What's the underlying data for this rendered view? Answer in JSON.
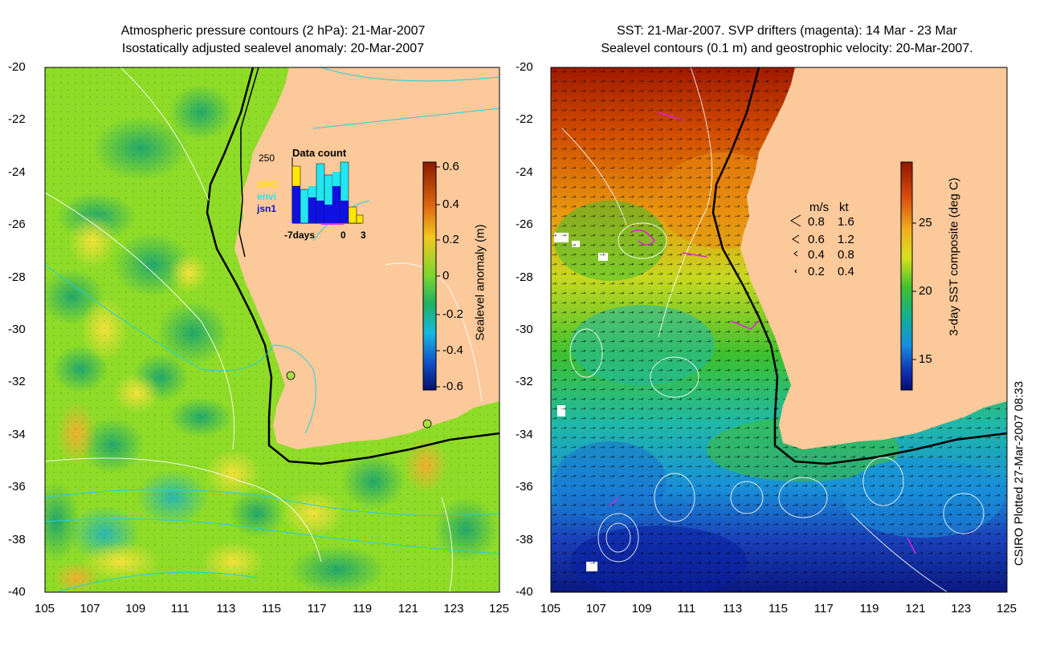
{
  "left_panel": {
    "title_line1": "Atmospheric pressure contours (2 hPa): 21-Mar-2007",
    "title_line2": "Isostatically adjusted sealevel anomaly: 20-Mar-2007",
    "colorbar": {
      "label": "Sealevel anomaly (m)",
      "ticks": [
        "0.6",
        "0.4",
        "0.2",
        "0",
        "-0.2",
        "-0.4",
        "-0.6"
      ]
    },
    "inset": {
      "title": "Data count",
      "y_max": "250",
      "legend": [
        {
          "name": "GFO",
          "color": "#ffe600"
        },
        {
          "name": "envi",
          "color": "#22e6f0"
        },
        {
          "name": "jsn1",
          "color": "#1010e0"
        }
      ],
      "x_labels": [
        "-7days",
        "0",
        "3"
      ]
    }
  },
  "right_panel": {
    "title_line1": "SST: 21-Mar-2007. SVP drifters (magenta): 14 Mar - 23 Mar",
    "title_line2": "Sealevel contours (0.1 m) and geostrophic velocity: 20-Mar-2007.",
    "colorbar": {
      "label": "3-day SST composite (deg C)",
      "ticks": [
        "25",
        "20",
        "15"
      ]
    },
    "velocity_legend": {
      "header_ms": "m/s",
      "header_kt": "kt",
      "rows": [
        {
          "ms": "0.8",
          "kt": "1.6"
        },
        {
          "ms": "0.6",
          "kt": "1.2"
        },
        {
          "ms": "0.4",
          "kt": "0.8"
        },
        {
          "ms": "0.2",
          "kt": "0.4"
        }
      ]
    }
  },
  "axes": {
    "lat_labels": [
      "-20",
      "-22",
      "-24",
      "-26",
      "-28",
      "-30",
      "-32",
      "-34",
      "-36",
      "-38",
      "-40"
    ],
    "lon_labels": [
      "105",
      "107",
      "109",
      "111",
      "113",
      "115",
      "117",
      "119",
      "121",
      "123",
      "125"
    ]
  },
  "credit": "CSIRO Plotted 27-Mar-2007 08:33",
  "colors": {
    "land": "#fcc99a",
    "sea_anomaly_base": "#8edc28",
    "sst_warm": "#b41e00",
    "sst_cold": "#0a1ea0",
    "drifter": "#e61ee6"
  }
}
